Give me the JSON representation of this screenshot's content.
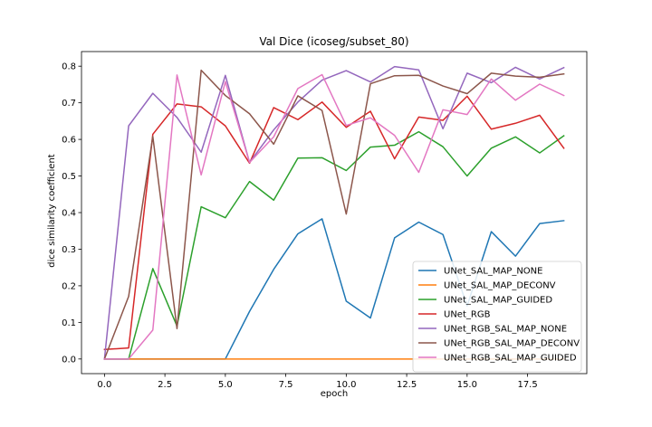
{
  "chart_data": {
    "type": "line",
    "title": "Val Dice (icoseg/subset_80)",
    "xlabel": "epoch",
    "ylabel": "dice similarity coefficient",
    "xlim": [
      -0.95,
      19.95
    ],
    "ylim": [
      -0.04,
      0.84
    ],
    "xticks": [
      0.0,
      2.5,
      5.0,
      7.5,
      10.0,
      12.5,
      15.0,
      17.5
    ],
    "xtick_labels": [
      "0.0",
      "2.5",
      "5.0",
      "7.5",
      "10.0",
      "12.5",
      "15.0",
      "17.5"
    ],
    "yticks": [
      0.0,
      0.1,
      0.2,
      0.3,
      0.4,
      0.5,
      0.6,
      0.7,
      0.8
    ],
    "ytick_labels": [
      "0.0",
      "0.1",
      "0.2",
      "0.3",
      "0.4",
      "0.5",
      "0.6",
      "0.7",
      "0.8"
    ],
    "grid": false,
    "legend_position": "lower-right",
    "x": [
      0,
      1,
      2,
      3,
      4,
      5,
      6,
      7,
      8,
      9,
      10,
      11,
      12,
      13,
      14,
      15,
      16,
      17,
      18,
      19
    ],
    "series": [
      {
        "name": "UNet_SAL_MAP_NONE",
        "color": "#1f77b4",
        "values": [
          0.0,
          0.0,
          0.0,
          0.0,
          0.0,
          0.0,
          0.13,
          0.245,
          0.342,
          0.383,
          0.158,
          0.112,
          0.331,
          0.374,
          0.34,
          0.145,
          0.348,
          0.281,
          0.37,
          0.378
        ]
      },
      {
        "name": "UNet_SAL_MAP_DECONV",
        "color": "#ff7f0e",
        "values": [
          0.0,
          0.0,
          0.0,
          0.0,
          0.0,
          0.0,
          0.0,
          0.0,
          0.0,
          0.0,
          0.0,
          0.0,
          0.0,
          0.0,
          0.0,
          0.0,
          0.0,
          0.0,
          0.0,
          0.0
        ]
      },
      {
        "name": "UNet_SAL_MAP_GUIDED",
        "color": "#2ca02c",
        "values": [
          0.0,
          0.0,
          0.247,
          0.09,
          0.416,
          0.386,
          0.485,
          0.434,
          0.549,
          0.55,
          0.515,
          0.579,
          0.584,
          0.621,
          0.58,
          0.5,
          0.576,
          0.607,
          0.563,
          0.61
        ]
      },
      {
        "name": "UNet_RGB",
        "color": "#d62728",
        "values": [
          0.026,
          0.03,
          0.614,
          0.697,
          0.689,
          0.637,
          0.535,
          0.687,
          0.654,
          0.702,
          0.633,
          0.677,
          0.547,
          0.661,
          0.652,
          0.718,
          0.628,
          0.644,
          0.666,
          0.576
        ]
      },
      {
        "name": "UNet_RGB_SAL_MAP_NONE",
        "color": "#9467bd",
        "values": [
          0.0,
          0.637,
          0.726,
          0.66,
          0.565,
          0.775,
          0.537,
          0.626,
          0.702,
          0.762,
          0.788,
          0.757,
          0.799,
          0.79,
          0.629,
          0.781,
          0.755,
          0.797,
          0.765,
          0.796
        ]
      },
      {
        "name": "UNet_RGB_SAL_MAP_DECONV",
        "color": "#8c564b",
        "values": [
          0.0,
          0.171,
          0.608,
          0.083,
          0.789,
          0.72,
          0.67,
          0.587,
          0.719,
          0.679,
          0.396,
          0.752,
          0.774,
          0.775,
          0.746,
          0.725,
          0.781,
          0.773,
          0.77,
          0.779
        ]
      },
      {
        "name": "UNet_RGB_SAL_MAP_GUIDED",
        "color": "#e377c2",
        "values": [
          0.0,
          0.0,
          0.079,
          0.776,
          0.503,
          0.758,
          0.537,
          0.607,
          0.739,
          0.777,
          0.638,
          0.659,
          0.611,
          0.51,
          0.681,
          0.668,
          0.765,
          0.707,
          0.751,
          0.72
        ]
      }
    ]
  }
}
